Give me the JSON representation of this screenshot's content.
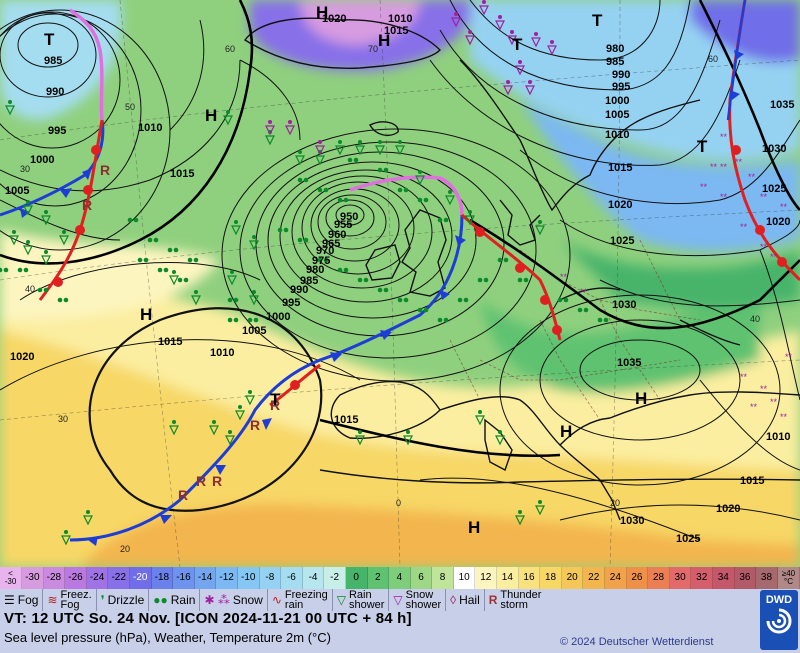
{
  "color_scale": {
    "cells": [
      {
        "label": "-30",
        "color": "#d79be0",
        "dark": false
      },
      {
        "label": "-28",
        "color": "#c98ae0",
        "dark": false
      },
      {
        "label": "-26",
        "color": "#b979e0",
        "dark": false
      },
      {
        "label": "-24",
        "color": "#9f73e6",
        "dark": false
      },
      {
        "label": "-22",
        "color": "#8770e8",
        "dark": false
      },
      {
        "label": "-20",
        "color": "#6f6ee8",
        "dark": true
      },
      {
        "label": "-18",
        "color": "#6a80ea",
        "dark": false
      },
      {
        "label": "-16",
        "color": "#6d93ee",
        "dark": false
      },
      {
        "label": "-14",
        "color": "#74a6f0",
        "dark": false
      },
      {
        "label": "-12",
        "color": "#7cb8f2",
        "dark": false
      },
      {
        "label": "-10",
        "color": "#86c6f2",
        "dark": false
      },
      {
        "label": "-8",
        "color": "#95d2f2",
        "dark": false
      },
      {
        "label": "-6",
        "color": "#a5ddf0",
        "dark": false
      },
      {
        "label": "-4",
        "color": "#b8e6ee",
        "dark": false
      },
      {
        "label": "-2",
        "color": "#c8eee8",
        "dark": false
      },
      {
        "label": "0",
        "color": "#46b46a",
        "dark": false
      },
      {
        "label": "2",
        "color": "#5ec271",
        "dark": false
      },
      {
        "label": "4",
        "color": "#7ecd7a",
        "dark": false
      },
      {
        "label": "6",
        "color": "#9ed886",
        "dark": false
      },
      {
        "label": "8",
        "color": "#bfe49a",
        "dark": false
      },
      {
        "label": "10",
        "color": "#ffffff",
        "dark": false
      },
      {
        "label": "12",
        "color": "#fdf5c0",
        "dark": false
      },
      {
        "label": "14",
        "color": "#fbeea0",
        "dark": false
      },
      {
        "label": "16",
        "color": "#f9e27e",
        "dark": false
      },
      {
        "label": "18",
        "color": "#f7d766",
        "dark": false
      },
      {
        "label": "20",
        "color": "#f5c758",
        "dark": false
      },
      {
        "label": "22",
        "color": "#f3b54e",
        "dark": false
      },
      {
        "label": "24",
        "color": "#f1a24a",
        "dark": false
      },
      {
        "label": "26",
        "color": "#ee9048",
        "dark": false
      },
      {
        "label": "28",
        "color": "#eb7f54",
        "dark": false
      },
      {
        "label": "30",
        "color": "#e26a6a",
        "dark": false
      },
      {
        "label": "32",
        "color": "#d45e6c",
        "dark": false
      },
      {
        "label": "34",
        "color": "#c4586a",
        "dark": false
      },
      {
        "label": "36",
        "color": "#b25a68",
        "dark": false
      },
      {
        "label": "38",
        "color": "#a66a6e",
        "dark": false
      }
    ],
    "low_end": {
      "top": "<",
      "bottom": "-30"
    },
    "high_end": {
      "top": "≥40",
      "bottom": "°C"
    }
  },
  "legend": {
    "fog": "Fog",
    "freezing_fog_1": "Freez.",
    "freezing_fog_2": "Fog",
    "drizzle": "Drizzle",
    "rain": "Rain",
    "snow": "Snow",
    "freezing_rain_1": "Freezing",
    "freezing_rain_2": "rain",
    "rain_shower_1": "Rain",
    "rain_shower_2": "shower",
    "snow_shower_1": "Snow",
    "snow_shower_2": "shower",
    "hail": "Hail",
    "thunderstorm_1": "Thunder",
    "thunderstorm_2": "storm"
  },
  "info": {
    "valid_time": "VT: 12 UTC So.  24 Nov. [ICON 2024-11-21  00 UTC + 84 h]",
    "parameters": "Sea level pressure (hPa), Weather, Temperature 2m (°C)",
    "copyright": "© 2024 Deutscher Wetterdienst",
    "logo": "DWD"
  },
  "map": {
    "pressure_labels": [
      {
        "t": "985"
      },
      {
        "t": "990"
      },
      {
        "t": "995"
      },
      {
        "t": "1000"
      },
      {
        "t": "1005"
      },
      {
        "t": "1010"
      },
      {
        "t": "1015"
      },
      {
        "t": "1020"
      },
      {
        "t": "1020"
      },
      {
        "t": "1015"
      },
      {
        "t": "980"
      },
      {
        "t": "985"
      },
      {
        "t": "990"
      },
      {
        "t": "995"
      },
      {
        "t": "1000"
      },
      {
        "t": "1005"
      },
      {
        "t": "1010"
      },
      {
        "t": "1035"
      },
      {
        "t": "1030"
      },
      {
        "t": "1025"
      },
      {
        "t": "1020"
      },
      {
        "t": "1015"
      },
      {
        "t": "1015"
      },
      {
        "t": "1010"
      },
      {
        "t": "1005"
      },
      {
        "t": "1000"
      },
      {
        "t": "995"
      },
      {
        "t": "990"
      },
      {
        "t": "985"
      },
      {
        "t": "980"
      },
      {
        "t": "975"
      },
      {
        "t": "970"
      },
      {
        "t": "965"
      },
      {
        "t": "960"
      },
      {
        "t": "955"
      },
      {
        "t": "950"
      },
      {
        "t": "1015"
      },
      {
        "t": "1020"
      },
      {
        "t": "1025"
      },
      {
        "t": "1030"
      },
      {
        "t": "1035"
      },
      {
        "t": "1030"
      },
      {
        "t": "1025"
      },
      {
        "t": "1020"
      },
      {
        "t": "1015"
      },
      {
        "t": "1010"
      },
      {
        "t": "1015"
      },
      {
        "t": "1020"
      },
      {
        "t": "1025"
      },
      {
        "t": "1030"
      },
      {
        "t": "1035"
      },
      {
        "t": "1010"
      },
      {
        "t": "1015"
      },
      {
        "t": "1020"
      }
    ],
    "centers": [
      "H",
      "H",
      "H",
      "H",
      "H",
      "H",
      "H",
      "T",
      "T",
      "T",
      "T",
      "T"
    ],
    "temp_labels": [
      "40",
      "50",
      "60",
      "70",
      "60",
      "40",
      "30",
      "20",
      "0",
      "30",
      "20",
      "40",
      "60"
    ]
  }
}
